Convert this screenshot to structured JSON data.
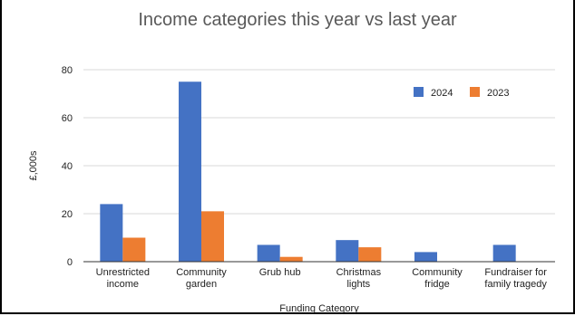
{
  "chart_data": {
    "type": "bar",
    "title": "Income categories this year vs last year",
    "xlabel": "Funding Category",
    "ylabel": "£,000s",
    "ylim": [
      0,
      80
    ],
    "yticks": [
      0,
      20,
      40,
      60,
      80
    ],
    "grid": true,
    "legend_position": "top-right",
    "categories": [
      [
        "Unrestricted",
        "income"
      ],
      [
        "Community",
        "garden"
      ],
      [
        "Grub hub"
      ],
      [
        "Christmas",
        "lights"
      ],
      [
        "Community",
        "fridge"
      ],
      [
        "Fundraiser for",
        "family tragedy"
      ]
    ],
    "series": [
      {
        "name": "2024",
        "color": "#4472C4",
        "values": [
          24,
          75,
          7,
          9,
          4,
          7
        ]
      },
      {
        "name": "2023",
        "color": "#ED7D31",
        "values": [
          10,
          21,
          2,
          6,
          0,
          0
        ]
      }
    ]
  }
}
